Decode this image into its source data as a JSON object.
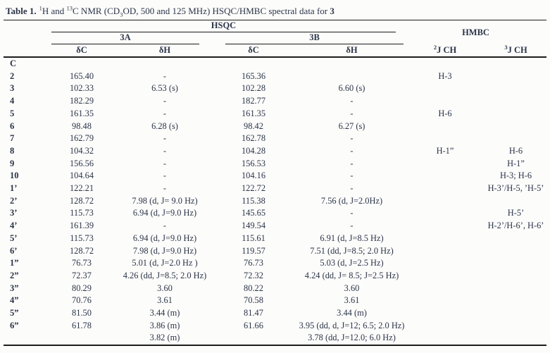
{
  "title": {
    "prefix": "Table 1.",
    "sup1": "1",
    "t1": "H and ",
    "sup2": "13",
    "t2": "C NMR (CD",
    "sub1": "3",
    "t3": "OD, 500 and 125 MHz) HSQC/HMBC spectral data for ",
    "compound": "3"
  },
  "header": {
    "hsqc": "HSQC",
    "hmbc": "HMBC",
    "col_3a": "3A",
    "col_3b": "3B",
    "dc": "δC",
    "dh": "δH",
    "j2_sup": "2",
    "j2_label": "J CH",
    "j3_sup": "3",
    "j3_label": "J CH"
  },
  "rows": [
    {
      "label": "C",
      "dc_a": "",
      "dh_a": "",
      "dc_b": "",
      "dh_b": "",
      "j2": "",
      "j3": ""
    },
    {
      "label": "2",
      "dc_a": "165.40",
      "dh_a": "-",
      "dc_b": "165.36",
      "dh_b": "",
      "j2": "H-3",
      "j3": ""
    },
    {
      "label": "3",
      "dc_a": "102.33",
      "dh_a": "6.53 (s)",
      "dc_b": "102.28",
      "dh_b": "6.60 (s)",
      "j2": "",
      "j3": ""
    },
    {
      "label": "4",
      "dc_a": "182.29",
      "dh_a": "-",
      "dc_b": "182.77",
      "dh_b": "-",
      "j2": "",
      "j3": ""
    },
    {
      "label": "5",
      "dc_a": "161.35",
      "dh_a": "-",
      "dc_b": "161.35",
      "dh_b": "-",
      "j2": "H-6",
      "j3": ""
    },
    {
      "label": "6",
      "dc_a": "98.48",
      "dh_a": "6.28 (s)",
      "dc_b": "98.42",
      "dh_b": "6.27 (s)",
      "j2": "",
      "j3": ""
    },
    {
      "label": "7",
      "dc_a": "162.79",
      "dh_a": "-",
      "dc_b": "162.78",
      "dh_b": "-",
      "j2": "",
      "j3": ""
    },
    {
      "label": "8",
      "dc_a": "104.32",
      "dh_a": "-",
      "dc_b": "104.28",
      "dh_b": "-",
      "j2": "H-1”",
      "j3": "H-6"
    },
    {
      "label": "9",
      "dc_a": "156.56",
      "dh_a": "-",
      "dc_b": "156.53",
      "dh_b": "-",
      "j2": "",
      "j3": "H-1”"
    },
    {
      "label": "10",
      "dc_a": "104.64",
      "dh_a": "-",
      "dc_b": "104.16",
      "dh_b": "-",
      "j2": "",
      "j3": "H-3; H-6"
    },
    {
      "label": "1’",
      "dc_a": "122.21",
      "dh_a": "-",
      "dc_b": "122.72",
      "dh_b": "-",
      "j2": "",
      "j3": "H-3’/H-5, ’H-5’"
    },
    {
      "label": "2’",
      "dc_a": "128.72",
      "dh_a": "7.98 (d, J= 9.0 Hz)",
      "dc_b": "115.38",
      "dh_b": "7.56 (d, J=2.0Hz)",
      "j2": "",
      "j3": ""
    },
    {
      "label": "3’",
      "dc_a": "115.73",
      "dh_a": "6.94 (d, J=9.0 Hz)",
      "dc_b": "145.65",
      "dh_b": "-",
      "j2": "",
      "j3": "H-5’"
    },
    {
      "label": "4’",
      "dc_a": "161.39",
      "dh_a": "-",
      "dc_b": "149.54",
      "dh_b": "-",
      "j2": "",
      "j3": "H-2’/H-6’, H-6’"
    },
    {
      "label": "5’",
      "dc_a": "115.73",
      "dh_a": "6.94 (d, J=9.0 Hz)",
      "dc_b": "115.61",
      "dh_b": "6.91 (d, J=8.5 Hz)",
      "j2": "",
      "j3": ""
    },
    {
      "label": "6’",
      "dc_a": "128.72",
      "dh_a": "7.98 (d, J=9.0 Hz)",
      "dc_b": "119.57",
      "dh_b": "7.51 (dd, J=8.5; 2.0 Hz)",
      "j2": "",
      "j3": ""
    },
    {
      "label": "1”",
      "dc_a": "76.73",
      "dh_a": "5.01 (d, J=2.0 Hz )",
      "dc_b": "76.73",
      "dh_b": "5.03 (d, J=2.5 Hz)",
      "j2": "",
      "j3": ""
    },
    {
      "label": "2”",
      "dc_a": "72.37",
      "dh_a": "4.26 (dd, J=8.5; 2.0 Hz)",
      "dc_b": "72.32",
      "dh_b": "4.24 (dd, J= 8.5; J=2.5 Hz)",
      "j2": "",
      "j3": ""
    },
    {
      "label": "3”",
      "dc_a": "80.29",
      "dh_a": "3.60",
      "dc_b": "80.22",
      "dh_b": "3.60",
      "j2": "",
      "j3": ""
    },
    {
      "label": "4”",
      "dc_a": "70.76",
      "dh_a": "3.61",
      "dc_b": "70.58",
      "dh_b": "3.61",
      "j2": "",
      "j3": ""
    },
    {
      "label": "5”",
      "dc_a": "81.50",
      "dh_a": "3.44 (m)",
      "dc_b": "81.47",
      "dh_b": "3.44 (m)",
      "j2": "",
      "j3": ""
    },
    {
      "label": "6”",
      "dc_a": "61.78",
      "dh_a": "3.86 (m)\n3.82 (m)",
      "dc_b": "61.66",
      "dh_b": "3.95 (dd, d, J=12; 6.5; 2.0 Hz)\n3.78 (dd, J=12.0; 6.0 Hz)",
      "j2": "",
      "j3": ""
    }
  ]
}
